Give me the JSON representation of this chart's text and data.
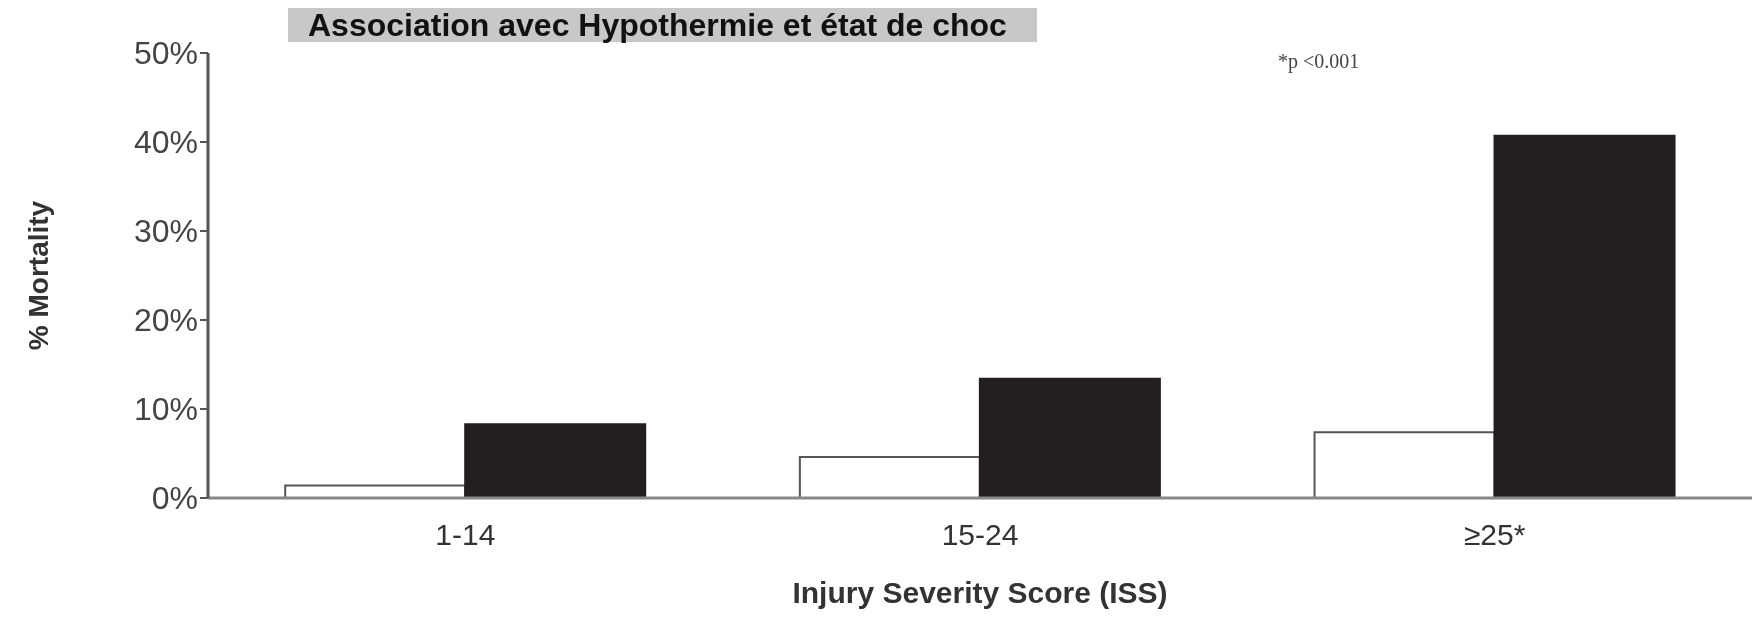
{
  "chart_data": {
    "type": "bar",
    "title": "Association avec Hypothermie et état de choc",
    "xlabel": "Injury Severity Score (ISS)",
    "ylabel": "% Mortality",
    "annotations": [
      "*p <0.001"
    ],
    "categories": [
      "1-14",
      "15-24",
      "≥25*"
    ],
    "series": [
      {
        "color": "#ffffff",
        "values": [
          1.4,
          4.6,
          7.4
        ]
      },
      {
        "color": "#231f20",
        "values": [
          8.3,
          13.4,
          40.7
        ]
      }
    ],
    "ylim": [
      0,
      50
    ],
    "yticks": [
      {
        "value": 0,
        "label": "0%"
      },
      {
        "value": 10,
        "label": "10%"
      },
      {
        "value": 20,
        "label": "20%"
      },
      {
        "value": 30,
        "label": "30%"
      },
      {
        "value": 40,
        "label": "40%"
      },
      {
        "value": 50,
        "label": "50%"
      }
    ],
    "grid": false,
    "legend": false
  }
}
